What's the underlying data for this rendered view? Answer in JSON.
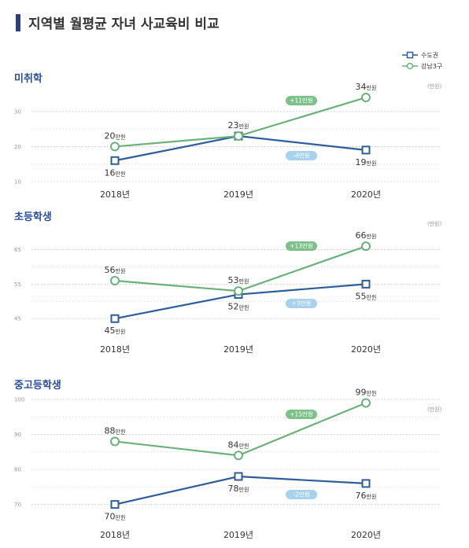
{
  "title": "지역별 월평균 자녀 사교육비 비교",
  "colors": {
    "title_bar": "#2f3f7e",
    "section_title": "#2b4e9b",
    "blue": "#2e5e99",
    "green": "#6ab17a",
    "badge_green": "#7cc08a",
    "badge_blue": "#a8d1ee",
    "grid": "#bfbfbf"
  },
  "legend": [
    {
      "name": "수도권",
      "series": "capital"
    },
    {
      "name": "강남3구",
      "series": "gangnam"
    }
  ],
  "chart_data": [
    {
      "type": "line",
      "title": "미취학",
      "x": [
        "2018년",
        "2019년",
        "2020년"
      ],
      "unit": "(만원)",
      "ylim": [
        10,
        34
      ],
      "yticks": [
        10,
        20,
        30
      ],
      "grid": true,
      "series": [
        {
          "name": "수도권",
          "values": [
            16,
            23,
            19
          ],
          "labels": [
            "16",
            "23",
            "19"
          ],
          "label_pos": [
            "below",
            "above",
            "below"
          ]
        },
        {
          "name": "강남3구",
          "values": [
            20,
            23,
            34
          ],
          "labels": [
            "20",
            "",
            "34"
          ],
          "label_pos": [
            "above",
            "above",
            "above"
          ]
        }
      ],
      "label_unit": "만원",
      "badges": [
        {
          "text": "+11만원",
          "color": "green"
        },
        {
          "text": "-4만원",
          "color": "blue"
        }
      ]
    },
    {
      "type": "line",
      "title": "초등학생",
      "x": [
        "2018년",
        "2019년",
        "2020년"
      ],
      "unit": "(만원)",
      "ylim": [
        43,
        69
      ],
      "yticks": [
        45,
        55,
        65
      ],
      "grid": true,
      "series": [
        {
          "name": "수도권",
          "values": [
            45,
            52,
            55
          ],
          "labels": [
            "45",
            "52",
            "55"
          ],
          "label_pos": [
            "below",
            "below",
            "below"
          ]
        },
        {
          "name": "강남3구",
          "values": [
            56,
            53,
            66
          ],
          "labels": [
            "56",
            "53",
            "66"
          ],
          "label_pos": [
            "above",
            "above",
            "above"
          ]
        }
      ],
      "label_unit": "만원",
      "badges": [
        {
          "text": "+13만원",
          "color": "green"
        },
        {
          "text": "+3만원",
          "color": "blue"
        }
      ]
    },
    {
      "type": "line",
      "title": "중고등학생",
      "x": [
        "2018년",
        "2019년",
        "2020년"
      ],
      "unit": "(만원)",
      "ylim": [
        67,
        100
      ],
      "yticks": [
        70,
        80,
        90,
        100
      ],
      "grid": true,
      "series": [
        {
          "name": "수도권",
          "values": [
            70,
            78,
            76
          ],
          "labels": [
            "70",
            "78",
            "76"
          ],
          "label_pos": [
            "below",
            "below",
            "below"
          ]
        },
        {
          "name": "강남3구",
          "values": [
            88,
            84,
            99
          ],
          "labels": [
            "88",
            "84",
            "99"
          ],
          "label_pos": [
            "above",
            "above",
            "above"
          ]
        }
      ],
      "label_unit": "만원",
      "badges": [
        {
          "text": "+15만원",
          "color": "green"
        },
        {
          "text": "-2만원",
          "color": "blue"
        }
      ]
    }
  ]
}
